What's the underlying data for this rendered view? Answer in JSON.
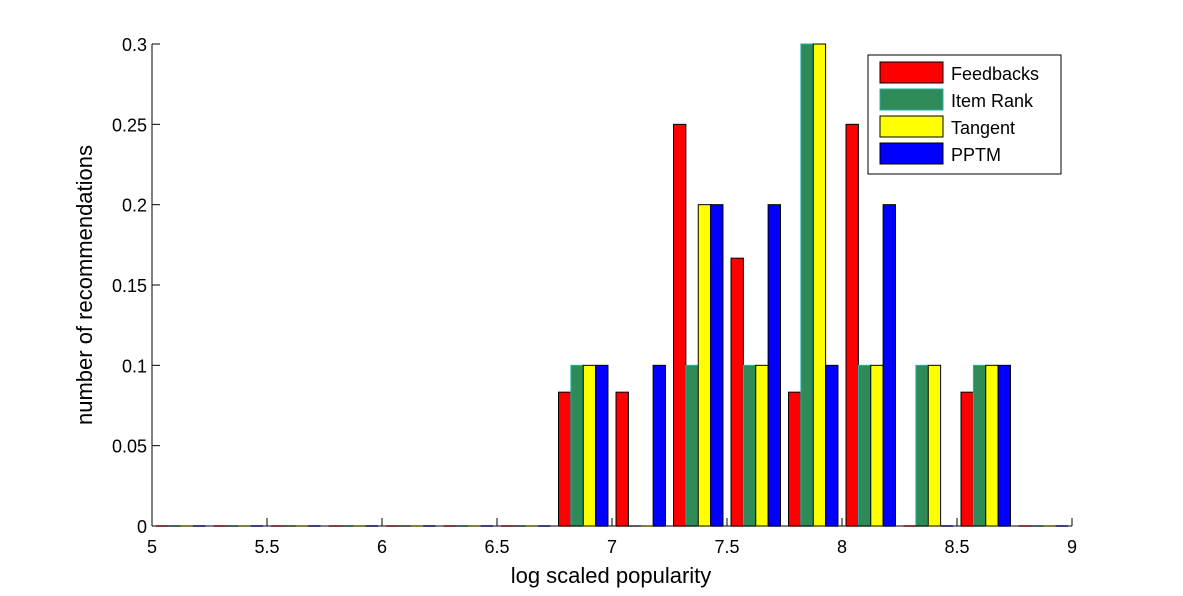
{
  "chart_data": {
    "type": "bar",
    "title": "",
    "xlabel": "log scaled popularity",
    "ylabel": "number of recommendations",
    "xlim": [
      5,
      9
    ],
    "ylim": [
      0,
      0.3
    ],
    "grid": false,
    "legend_position": "top-right",
    "x_ticks": [
      "5",
      "5.5",
      "6",
      "6.5",
      "7",
      "7.5",
      "8",
      "8.5",
      "9"
    ],
    "y_ticks": [
      "0",
      "0.05",
      "0.1",
      "0.15",
      "0.2",
      "0.25",
      "0.3"
    ],
    "bin_centers": [
      5.125,
      5.375,
      5.625,
      5.875,
      6.125,
      6.375,
      6.625,
      6.875,
      7.125,
      7.375,
      7.625,
      7.875,
      8.125,
      8.375,
      8.625,
      8.875
    ],
    "series": [
      {
        "name": "Feedbacks",
        "color": "#ff0000",
        "values": [
          0,
          0,
          0,
          0,
          0,
          0,
          0,
          0.0833,
          0.0833,
          0.25,
          0.1667,
          0.0833,
          0.25,
          0,
          0.0833,
          0
        ]
      },
      {
        "name": "Item Rank",
        "color": "#2e8b57",
        "edge_color": "#20b2aa",
        "values": [
          0,
          0,
          0,
          0,
          0,
          0,
          0,
          0.1,
          0,
          0.1,
          0.1,
          0.3,
          0.1,
          0.1,
          0.1,
          0
        ]
      },
      {
        "name": "Tangent",
        "color": "#ffff00",
        "values": [
          0,
          0,
          0,
          0,
          0,
          0,
          0,
          0.1,
          0,
          0.2,
          0.1,
          0.3,
          0.1,
          0.1,
          0.1,
          0
        ]
      },
      {
        "name": "PPTM",
        "color": "#0000ff",
        "values": [
          0,
          0,
          0,
          0,
          0,
          0,
          0,
          0.1,
          0.1,
          0.2,
          0.2,
          0.1,
          0.2,
          0,
          0.1,
          0
        ]
      }
    ]
  }
}
